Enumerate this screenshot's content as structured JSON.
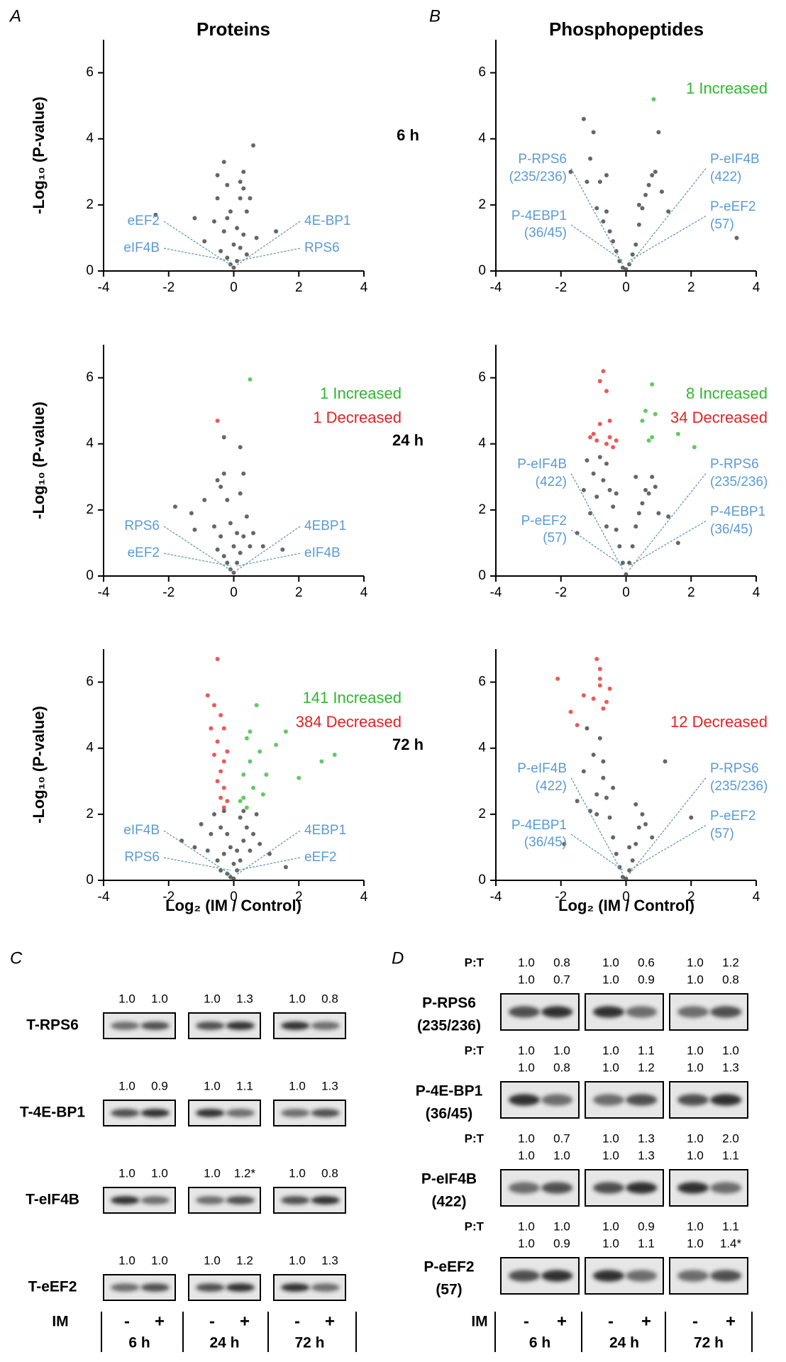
{
  "panels": [
    "A",
    "B",
    "C",
    "D"
  ],
  "columns": [
    "Proteins",
    "Phosphopeptides"
  ],
  "rows": [
    "6 h",
    "24 h",
    "72 h"
  ],
  "ylabel": "-Log₁₀ (P-value)",
  "xlabel": "Log₂ (IM / Control)",
  "chart_data": [
    {
      "type": "scatter",
      "xlim": [
        -4,
        4
      ],
      "ylim": [
        0,
        7
      ],
      "xticks": [
        -4,
        -2,
        0,
        2,
        4
      ],
      "yticks": [
        0,
        2,
        4,
        6
      ],
      "labels": [
        [
          "eEF2"
        ],
        [
          "eIF4B"
        ],
        [
          "4E-BP1"
        ],
        [
          "RPS6"
        ]
      ],
      "annotations": {},
      "series": [
        {
          "color": "#333333",
          "x": [
            -2.4,
            -1.2,
            -0.9,
            -0.6,
            -0.5,
            -0.4,
            -0.3,
            -0.3,
            -0.2,
            -0.2,
            -0.1,
            -0.1,
            0,
            0,
            0.1,
            0.1,
            0.2,
            0.2,
            0.3,
            0.3,
            0.4,
            0.4,
            0.5,
            0.6,
            0.7,
            1.3,
            -0.5,
            0.3,
            -0.2,
            0.2
          ],
          "y": [
            1.7,
            1.6,
            0.9,
            1.5,
            2.2,
            0.6,
            3.3,
            1.2,
            2.6,
            0.4,
            1.8,
            0.2,
            0.8,
            0.1,
            1.3,
            0.3,
            2.2,
            0.7,
            3,
            1.1,
            1.8,
            0.5,
            2.2,
            3.8,
            1,
            1.2,
            2.9,
            2.5,
            1.6,
            2.7
          ]
        }
      ]
    },
    {
      "type": "scatter",
      "xlim": [
        -4,
        4
      ],
      "ylim": [
        0,
        7
      ],
      "xticks": [
        -4,
        -2,
        0,
        2,
        4
      ],
      "yticks": [
        0,
        2,
        4,
        6
      ],
      "labels": [
        [
          "RPS6"
        ],
        [
          "eEF2"
        ],
        [
          "4EBP1"
        ],
        [
          "eIF4B"
        ]
      ],
      "annotations": {
        "increased": {
          "text": "1 Increased",
          "color": "#2eb82e"
        },
        "decreased": {
          "text": "1 Decreased",
          "color": "#e82020"
        }
      },
      "series": [
        {
          "color": "#333333",
          "x": [
            -1.8,
            -1.3,
            -1.2,
            -0.9,
            -0.6,
            -0.5,
            -0.4,
            -0.4,
            -0.3,
            -0.3,
            -0.2,
            -0.2,
            -0.1,
            -0.1,
            0,
            0,
            0.1,
            0.1,
            0.2,
            0.2,
            0.3,
            0.3,
            0.4,
            0.5,
            0.6,
            0.9,
            1.5,
            -0.3,
            0.2,
            -0.5
          ],
          "y": [
            2.1,
            1.9,
            1.4,
            2.3,
            1.5,
            0.8,
            2.7,
            1.2,
            3.1,
            0.6,
            2.3,
            0.4,
            1.6,
            0.2,
            0.9,
            0.1,
            1.3,
            0.4,
            2.5,
            0.7,
            3.1,
            1.2,
            1.8,
            0.9,
            1.3,
            0.9,
            0.8,
            4.2,
            3.9,
            2.9
          ]
        },
        {
          "color": "#e82020",
          "x": [
            -0.5
          ],
          "y": [
            4.7
          ]
        },
        {
          "color": "#2eb82e",
          "x": [
            0.5
          ],
          "y": [
            5.95
          ]
        }
      ]
    },
    {
      "type": "scatter",
      "xlim": [
        -4,
        4
      ],
      "ylim": [
        0,
        7
      ],
      "xticks": [
        -4,
        -2,
        0,
        2,
        4
      ],
      "yticks": [
        0,
        2,
        4,
        6
      ],
      "labels": [
        [
          "eIF4B"
        ],
        [
          "RPS6"
        ],
        [
          "4EBP1"
        ],
        [
          "eEF2"
        ]
      ],
      "annotations": {
        "increased": {
          "text": "141 Increased",
          "color": "#2eb82e"
        },
        "decreased": {
          "text": "384 Decreased",
          "color": "#e82020"
        }
      },
      "series": [
        {
          "color": "#333333",
          "x": [
            -1.6,
            -1.2,
            -1,
            -0.8,
            -0.6,
            -0.5,
            -0.4,
            -0.4,
            -0.3,
            -0.3,
            -0.2,
            -0.2,
            -0.1,
            -0.1,
            0,
            0,
            0.1,
            0.1,
            0.2,
            0.2,
            0.3,
            0.3,
            0.4,
            0.5,
            0.6,
            0.8,
            1.1,
            1.6,
            -0.7,
            0.7
          ],
          "y": [
            1.2,
            1,
            1.7,
            0.9,
            2,
            0.6,
            1.6,
            0.3,
            2.1,
            0.8,
            1.4,
            0.2,
            1,
            0.1,
            0.5,
            0.05,
            0.9,
            0.3,
            1.9,
            0.6,
            2.1,
            1.2,
            1.6,
            0.9,
            1.4,
            1.1,
            0.8,
            0.4,
            1.4,
            2
          ]
        },
        {
          "color": "#e82020",
          "x": [
            -0.8,
            -0.7,
            -0.6,
            -0.6,
            -0.5,
            -0.5,
            -0.4,
            -0.4,
            -0.4,
            -0.3,
            -0.3,
            -0.3,
            -0.2,
            -0.2,
            -0.5,
            -0.3
          ],
          "y": [
            5.6,
            4.6,
            5.3,
            3.8,
            6.7,
            4.2,
            5,
            3.3,
            2.5,
            4.6,
            3.6,
            2.8,
            3.9,
            2.4,
            3,
            2.2
          ]
        },
        {
          "color": "#2eb82e",
          "x": [
            0.2,
            0.3,
            0.3,
            0.4,
            0.5,
            0.6,
            0.7,
            0.8,
            1,
            1.3,
            1.6,
            2,
            2.7,
            3.1,
            0.5,
            0.9,
            0.4
          ],
          "y": [
            2.4,
            3.2,
            2.5,
            4.3,
            3.6,
            2.8,
            5.3,
            3.9,
            3.2,
            4.1,
            4.5,
            3.1,
            3.6,
            3.8,
            4.5,
            2.6,
            2.2
          ]
        }
      ]
    },
    {
      "type": "scatter",
      "xlim": [
        -4,
        4
      ],
      "ylim": [
        0,
        7
      ],
      "xticks": [
        -4,
        -2,
        0,
        2,
        4
      ],
      "yticks": [
        0,
        2,
        4,
        6
      ],
      "labels": [
        [
          "P-RPS6",
          "(235/236)"
        ],
        [
          "P-4EBP1",
          "(36/45)"
        ],
        [
          "P-eIF4B",
          "(422)"
        ],
        [
          "P-eEF2",
          "(57)"
        ]
      ],
      "annotations": {
        "increased": {
          "text": "1 Increased",
          "color": "#2eb82e"
        }
      },
      "series": [
        {
          "color": "#333333",
          "x": [
            -1.7,
            -1.3,
            -1.2,
            -1.1,
            -0.9,
            -0.8,
            -0.7,
            -0.6,
            -0.5,
            -0.4,
            -0.3,
            -0.2,
            -0.1,
            0,
            0.1,
            0.2,
            0.3,
            0.4,
            0.5,
            0.6,
            0.7,
            0.8,
            0.9,
            1,
            1.1,
            1.3,
            3.4,
            -1,
            0.4,
            -0.6
          ],
          "y": [
            3,
            4.6,
            2.7,
            3.4,
            1.9,
            2.7,
            1.5,
            1.8,
            1.2,
            0.9,
            0.6,
            0.3,
            0.1,
            0.05,
            0.2,
            0.5,
            0.8,
            1.4,
            1.9,
            2.3,
            2.6,
            2.9,
            3,
            4.2,
            2.4,
            1.8,
            1,
            4.2,
            2,
            2.9
          ]
        },
        {
          "color": "#2eb82e",
          "x": [
            0.85
          ],
          "y": [
            5.2
          ]
        }
      ]
    },
    {
      "type": "scatter",
      "xlim": [
        -4,
        4
      ],
      "ylim": [
        0,
        7
      ],
      "xticks": [
        -4,
        -2,
        0,
        2,
        4
      ],
      "yticks": [
        0,
        2,
        4,
        6
      ],
      "labels": [
        [
          "P-eIF4B",
          "(422)"
        ],
        [
          "P-eEF2",
          "(57)"
        ],
        [
          "P-RPS6",
          "(235/236)"
        ],
        [
          "P-4EBP1",
          "(36/45)"
        ]
      ],
      "annotations": {
        "increased": {
          "text": "8 Increased",
          "color": "#2eb82e"
        },
        "decreased": {
          "text": "34 Decreased",
          "color": "#e82020"
        }
      },
      "series": [
        {
          "color": "#333333",
          "x": [
            -1.5,
            -1.3,
            -1.1,
            -1,
            -0.9,
            -0.8,
            -0.7,
            -0.6,
            -0.5,
            -0.4,
            -0.3,
            -0.2,
            -0.1,
            0,
            0.1,
            0.2,
            0.3,
            0.4,
            0.5,
            0.6,
            0.7,
            0.8,
            1,
            1.3,
            1.6,
            -1.2,
            0.9,
            -0.6,
            0.3,
            -0.3
          ],
          "y": [
            1.3,
            2.6,
            1.9,
            3.1,
            2.4,
            3.6,
            2.9,
            3.4,
            2.6,
            2.1,
            1.4,
            0.9,
            0.4,
            0.05,
            0.4,
            0.9,
            1.5,
            1.9,
            2.2,
            2.6,
            2.5,
            3,
            1.9,
            1.8,
            1,
            3.5,
            2.7,
            1.5,
            3,
            2.5
          ]
        },
        {
          "color": "#e82020",
          "x": [
            -1,
            -0.9,
            -0.8,
            -0.8,
            -0.7,
            -0.6,
            -0.6,
            -0.5,
            -0.5,
            -0.4,
            -1.1,
            -0.3
          ],
          "y": [
            4.3,
            4.1,
            5.9,
            4.6,
            6.2,
            5.6,
            4,
            4.7,
            4.2,
            3.9,
            4.2,
            4.1
          ]
        },
        {
          "color": "#2eb82e",
          "x": [
            0.8,
            0.5,
            0.7,
            1.6,
            2.1,
            0.9,
            0.6,
            0.8
          ],
          "y": [
            5.8,
            4.7,
            4.1,
            4.3,
            3.9,
            4.9,
            5,
            4.2
          ]
        }
      ]
    },
    {
      "type": "scatter",
      "xlim": [
        -4,
        4
      ],
      "ylim": [
        0,
        7
      ],
      "xticks": [
        -4,
        -2,
        0,
        2,
        4
      ],
      "yticks": [
        0,
        2,
        4,
        6
      ],
      "labels": [
        [
          "P-eIF4B",
          "(422)"
        ],
        [
          "P-4EBP1",
          "(36/45)"
        ],
        [
          "P-RPS6",
          "(235/236)"
        ],
        [
          "P-eEF2",
          "(57)"
        ]
      ],
      "annotations": {
        "decreased": {
          "text": "12 Decreased",
          "color": "#e82020"
        }
      },
      "series": [
        {
          "color": "#333333",
          "x": [
            -1.9,
            -1.5,
            -1.3,
            -1.1,
            -1,
            -0.9,
            -0.8,
            -0.7,
            -0.6,
            -0.5,
            -0.4,
            -0.3,
            -0.2,
            -0.1,
            0,
            0.1,
            0.2,
            0.3,
            0.4,
            0.5,
            0.6,
            0.8,
            1.2,
            2,
            -1.2,
            -0.7,
            0.3,
            -0.4,
            0.1,
            -0.9
          ],
          "y": [
            1.1,
            2.4,
            3.3,
            2.1,
            3.8,
            2.6,
            4.3,
            3.1,
            2.5,
            1.9,
            1.3,
            0.8,
            0.4,
            0.1,
            0.05,
            0.3,
            0.6,
            1.1,
            1.6,
            2,
            1.7,
            1.3,
            3.6,
            1.9,
            4.6,
            3.6,
            2.3,
            2.8,
            1,
            2
          ]
        },
        {
          "color": "#e82020",
          "x": [
            -2.1,
            -1.7,
            -1.5,
            -0.9,
            -0.8,
            -0.8,
            -0.8,
            -0.7,
            -1,
            -0.5,
            -0.6,
            -1.3
          ],
          "y": [
            6.1,
            5.1,
            4.7,
            6.7,
            6.4,
            6.1,
            5.9,
            5.2,
            5.5,
            5.8,
            5.4,
            5.6
          ]
        }
      ]
    }
  ],
  "blots": {
    "treatment_label": "IM",
    "lanes": [
      "-",
      "+"
    ],
    "times": [
      "6 h",
      "24 h",
      "72 h"
    ],
    "C": {
      "rows": [
        {
          "label": [
            "T-RPS6"
          ],
          "quant": [
            "1.0",
            "1.0",
            "1.0",
            "1.3",
            "1.0",
            "0.8"
          ]
        },
        {
          "label": [
            "T-4E-BP1"
          ],
          "quant": [
            "1.0",
            "0.9",
            "1.0",
            "1.1",
            "1.0",
            "1.3"
          ]
        },
        {
          "label": [
            "T-eIF4B"
          ],
          "quant": [
            "1.0",
            "1.0",
            "1.0",
            "1.2*",
            "1.0",
            "0.8"
          ]
        },
        {
          "label": [
            "T-eEF2"
          ],
          "quant": [
            "1.0",
            "1.0",
            "1.0",
            "1.2",
            "1.0",
            "1.3"
          ]
        }
      ]
    },
    "D": {
      "ratio_label": "P:T",
      "rows": [
        {
          "label": [
            "P-RPS6",
            "(235/236)"
          ],
          "ratio": [
            "1.0",
            "0.8",
            "1.0",
            "0.6",
            "1.0",
            "1.2"
          ],
          "quant": [
            "1.0",
            "0.7",
            "1.0",
            "0.9",
            "1.0",
            "0.8"
          ]
        },
        {
          "label": [
            "P-4E-BP1",
            "(36/45)"
          ],
          "ratio": [
            "1.0",
            "1.0",
            "1.0",
            "1.1",
            "1.0",
            "1.0"
          ],
          "quant": [
            "1.0",
            "0.8",
            "1.0",
            "1.2",
            "1.0",
            "1.3"
          ]
        },
        {
          "label": [
            "P-eIF4B",
            "(422)"
          ],
          "ratio": [
            "1.0",
            "0.7",
            "1.0",
            "1.3",
            "1.0",
            "2.0"
          ],
          "quant": [
            "1.0",
            "1.0",
            "1.0",
            "1.3",
            "1.0",
            "1.1"
          ]
        },
        {
          "label": [
            "P-eEF2",
            "(57)"
          ],
          "ratio": [
            "1.0",
            "1.0",
            "1.0",
            "0.9",
            "1.0",
            "1.1"
          ],
          "quant": [
            "1.0",
            "0.9",
            "1.0",
            "1.1",
            "1.0",
            "1.4*"
          ]
        }
      ]
    }
  }
}
